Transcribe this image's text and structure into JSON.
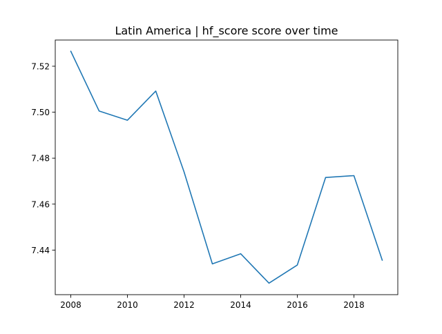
{
  "chart_data": {
    "type": "line",
    "title": "Latin America | hf_score score over time",
    "xlabel": "",
    "ylabel": "",
    "x": [
      2008,
      2009,
      2010,
      2011,
      2012,
      2013,
      2014,
      2015,
      2016,
      2017,
      2018,
      2019
    ],
    "series": [
      {
        "values": [
          7.5265,
          7.5005,
          7.4965,
          7.5092,
          7.474,
          7.434,
          7.4384,
          7.4256,
          7.4335,
          7.4716,
          7.4724,
          7.4356
        ]
      }
    ],
    "xlim": [
      2007.45,
      2019.55
    ],
    "ylim": [
      7.4206,
      7.5314
    ],
    "xticks": [
      2008,
      2010,
      2012,
      2014,
      2016,
      2018
    ],
    "yticks": [
      7.44,
      7.46,
      7.48,
      7.5,
      7.52
    ],
    "ytick_labels": [
      "7.44",
      "7.46",
      "7.48",
      "7.50",
      "7.52"
    ],
    "grid": false,
    "colors": {
      "line": "#1f77b4",
      "axes": "#000000",
      "background": "#ffffff"
    }
  }
}
